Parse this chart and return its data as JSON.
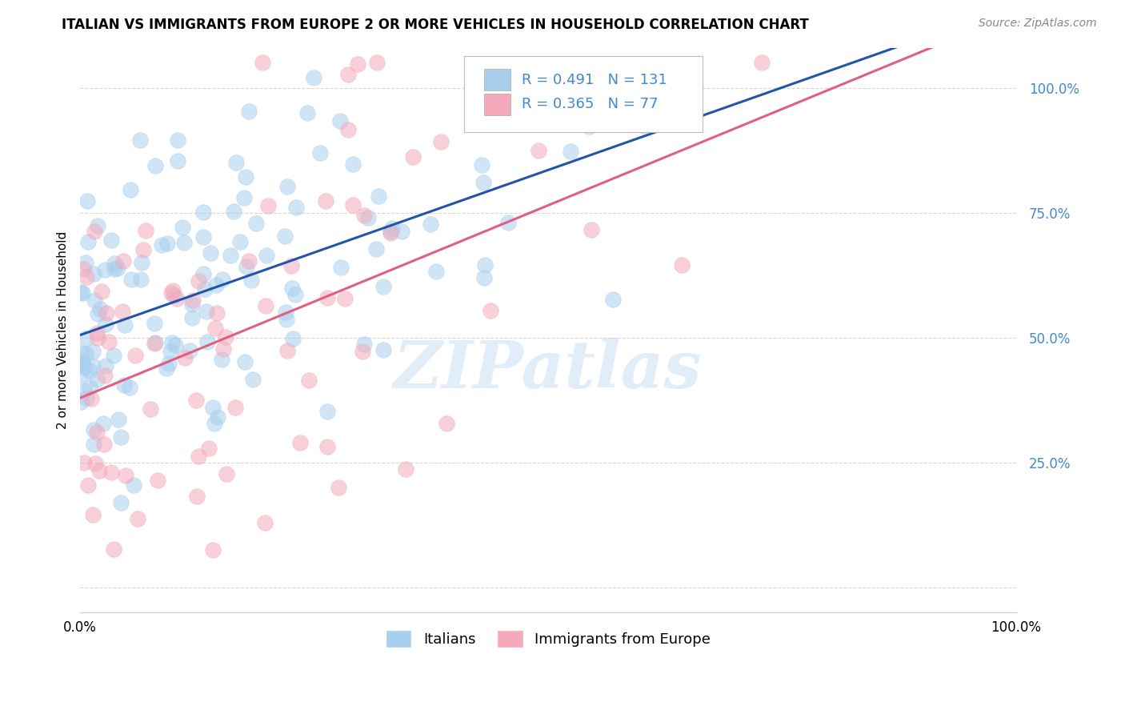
{
  "title": "ITALIAN VS IMMIGRANTS FROM EUROPE 2 OR MORE VEHICLES IN HOUSEHOLD CORRELATION CHART",
  "source": "Source: ZipAtlas.com",
  "ylabel": "2 or more Vehicles in Household",
  "ytick_labels": [
    "",
    "25.0%",
    "50.0%",
    "75.0%",
    "100.0%"
  ],
  "ytick_positions": [
    0.0,
    0.25,
    0.5,
    0.75,
    1.0
  ],
  "xlim": [
    0.0,
    1.0
  ],
  "ylim": [
    -0.05,
    1.08
  ],
  "blue_R": 0.491,
  "blue_N": 131,
  "pink_R": 0.365,
  "pink_N": 77,
  "blue_color": "#A8CFEE",
  "pink_color": "#F4AABB",
  "blue_line_color": "#2255AA",
  "pink_line_color": "#E06080",
  "legend_label_blue": "Italians",
  "legend_label_pink": "Immigrants from Europe",
  "watermark": "ZIPatlas",
  "background_color": "#ffffff",
  "grid_color": "#cccccc",
  "blue_seed": 42,
  "pink_seed": 99,
  "title_fontsize": 12,
  "source_fontsize": 10,
  "tick_label_color": "#4488CC",
  "tick_label_fontsize": 12
}
